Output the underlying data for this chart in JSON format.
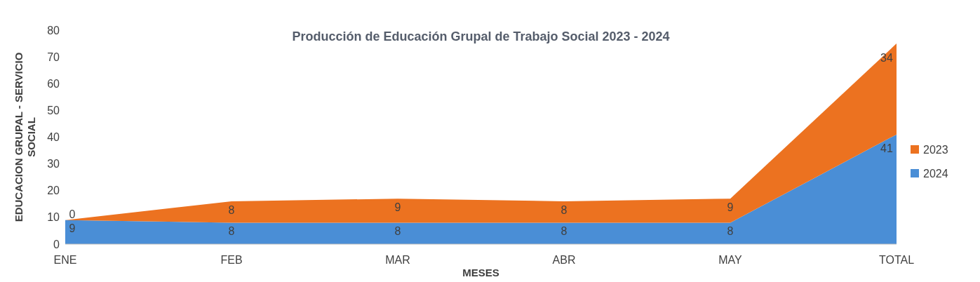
{
  "chart_data": {
    "type": "area",
    "title": "Producción de Educación Grupal de Trabajo Social 2023 - 2024",
    "xlabel": "MESES",
    "ylabel": "EDUCACION GRUPAL - SERVICIO SOCIAL",
    "categories": [
      "ENE",
      "FEB",
      "MAR",
      "ABR",
      "MAY",
      "TOTAL"
    ],
    "series": [
      {
        "name": "2024",
        "color": "#4a8ed6",
        "values": [
          9,
          8,
          8,
          8,
          8,
          41
        ]
      },
      {
        "name": "2023",
        "color": "#ec7220",
        "values": [
          0,
          8,
          9,
          8,
          9,
          34
        ]
      }
    ],
    "stacked": true,
    "ylim": [
      0,
      80
    ],
    "yticks": [
      0,
      10,
      20,
      30,
      40,
      50,
      60,
      70,
      80
    ],
    "data_labels": true,
    "legend": "right",
    "grid": false
  }
}
